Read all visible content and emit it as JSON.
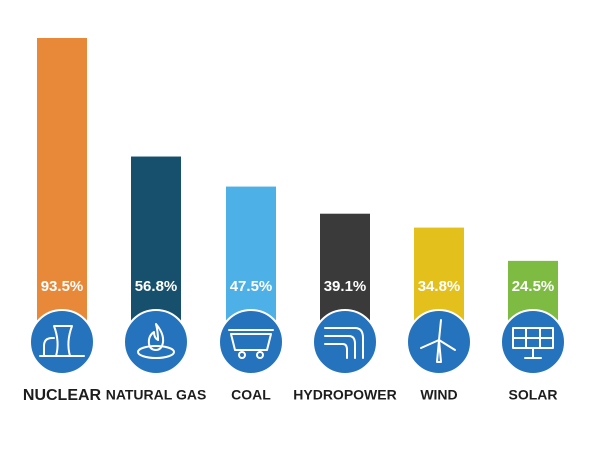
{
  "chart_data": {
    "type": "bar",
    "categories": [
      "NUCLEAR",
      "NATURAL GAS",
      "COAL",
      "HYDROPOWER",
      "WIND",
      "SOLAR"
    ],
    "values": [
      93.5,
      56.8,
      47.5,
      39.1,
      34.8,
      24.5
    ],
    "value_labels": [
      "93.5%",
      "56.8%",
      "47.5%",
      "39.1%",
      "34.8%",
      "24.5%"
    ],
    "colors": [
      "#e8893a",
      "#17506c",
      "#4db0e6",
      "#3a3a3a",
      "#e3c01c",
      "#7dbb42"
    ]
  }
}
